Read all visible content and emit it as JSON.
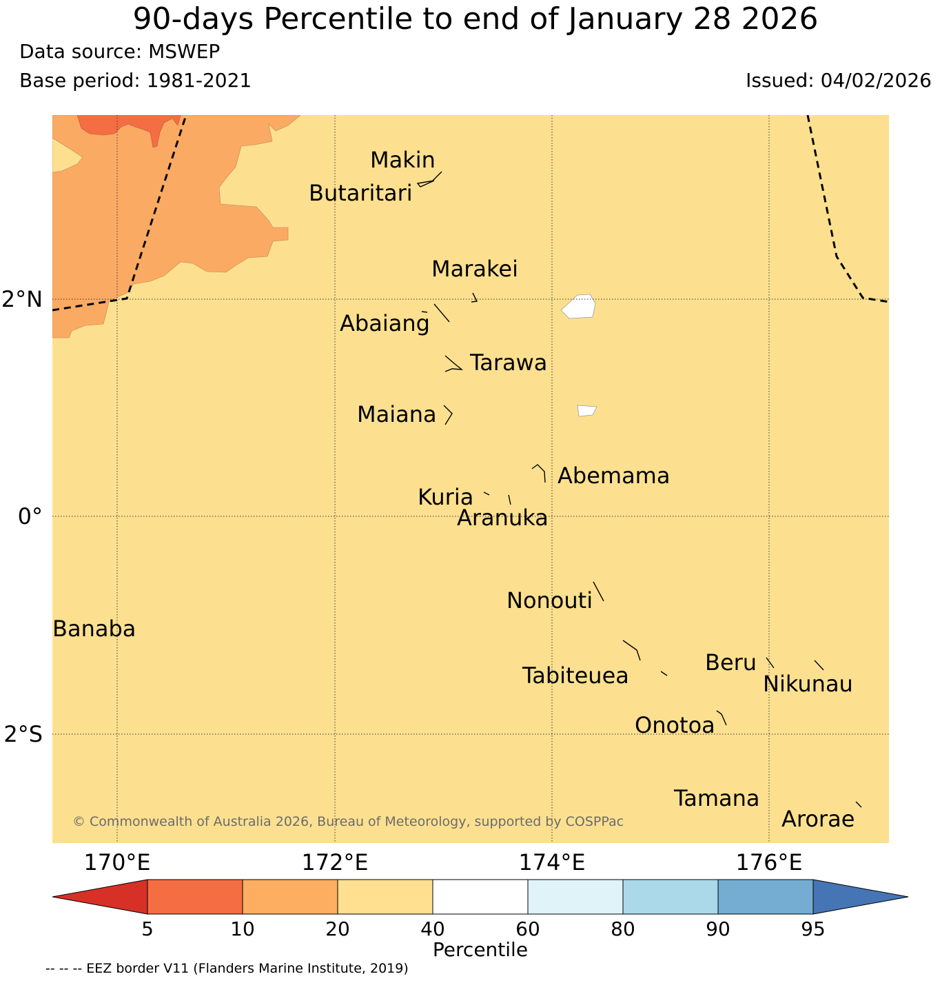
{
  "header": {
    "title": "90-days Percentile to end of January 28 2026",
    "data_source": "Data source: MSWEP",
    "base_period": "Base period: 1981-2021",
    "issued": "Issued: 04/02/2026"
  },
  "map": {
    "background_color": "#fce08f",
    "lat_labels": [
      "2°N",
      "0°",
      "2°S"
    ],
    "lon_labels": [
      "170°E",
      "172°E",
      "174°E",
      "176°E"
    ],
    "islands": [
      "Makin",
      "Butaritari",
      "Marakei",
      "Abaiang",
      "Tarawa",
      "Maiana",
      "Abemama",
      "Kuria",
      "Aranuka",
      "Nonouti",
      "Banaba",
      "Tabiteuea",
      "Beru",
      "Nikunau",
      "Onotoa",
      "Tamana",
      "Arorae"
    ],
    "copyright": "© Commonwealth of Australia 2026, Bureau of Meteorology, supported by COSPPac"
  },
  "colorbar": {
    "title": "Percentile",
    "ticks": [
      "5",
      "10",
      "20",
      "40",
      "60",
      "80",
      "90",
      "95"
    ],
    "colors": [
      "#d73027",
      "#f46d43",
      "#fdae61",
      "#fee090",
      "#ffffff",
      "#e0f3f8",
      "#abd9e9",
      "#74add1",
      "#4575b4"
    ]
  },
  "footer": {
    "eez_note": "-- -- -- EEZ border V11 (Flanders Marine Institute, 2019)"
  }
}
